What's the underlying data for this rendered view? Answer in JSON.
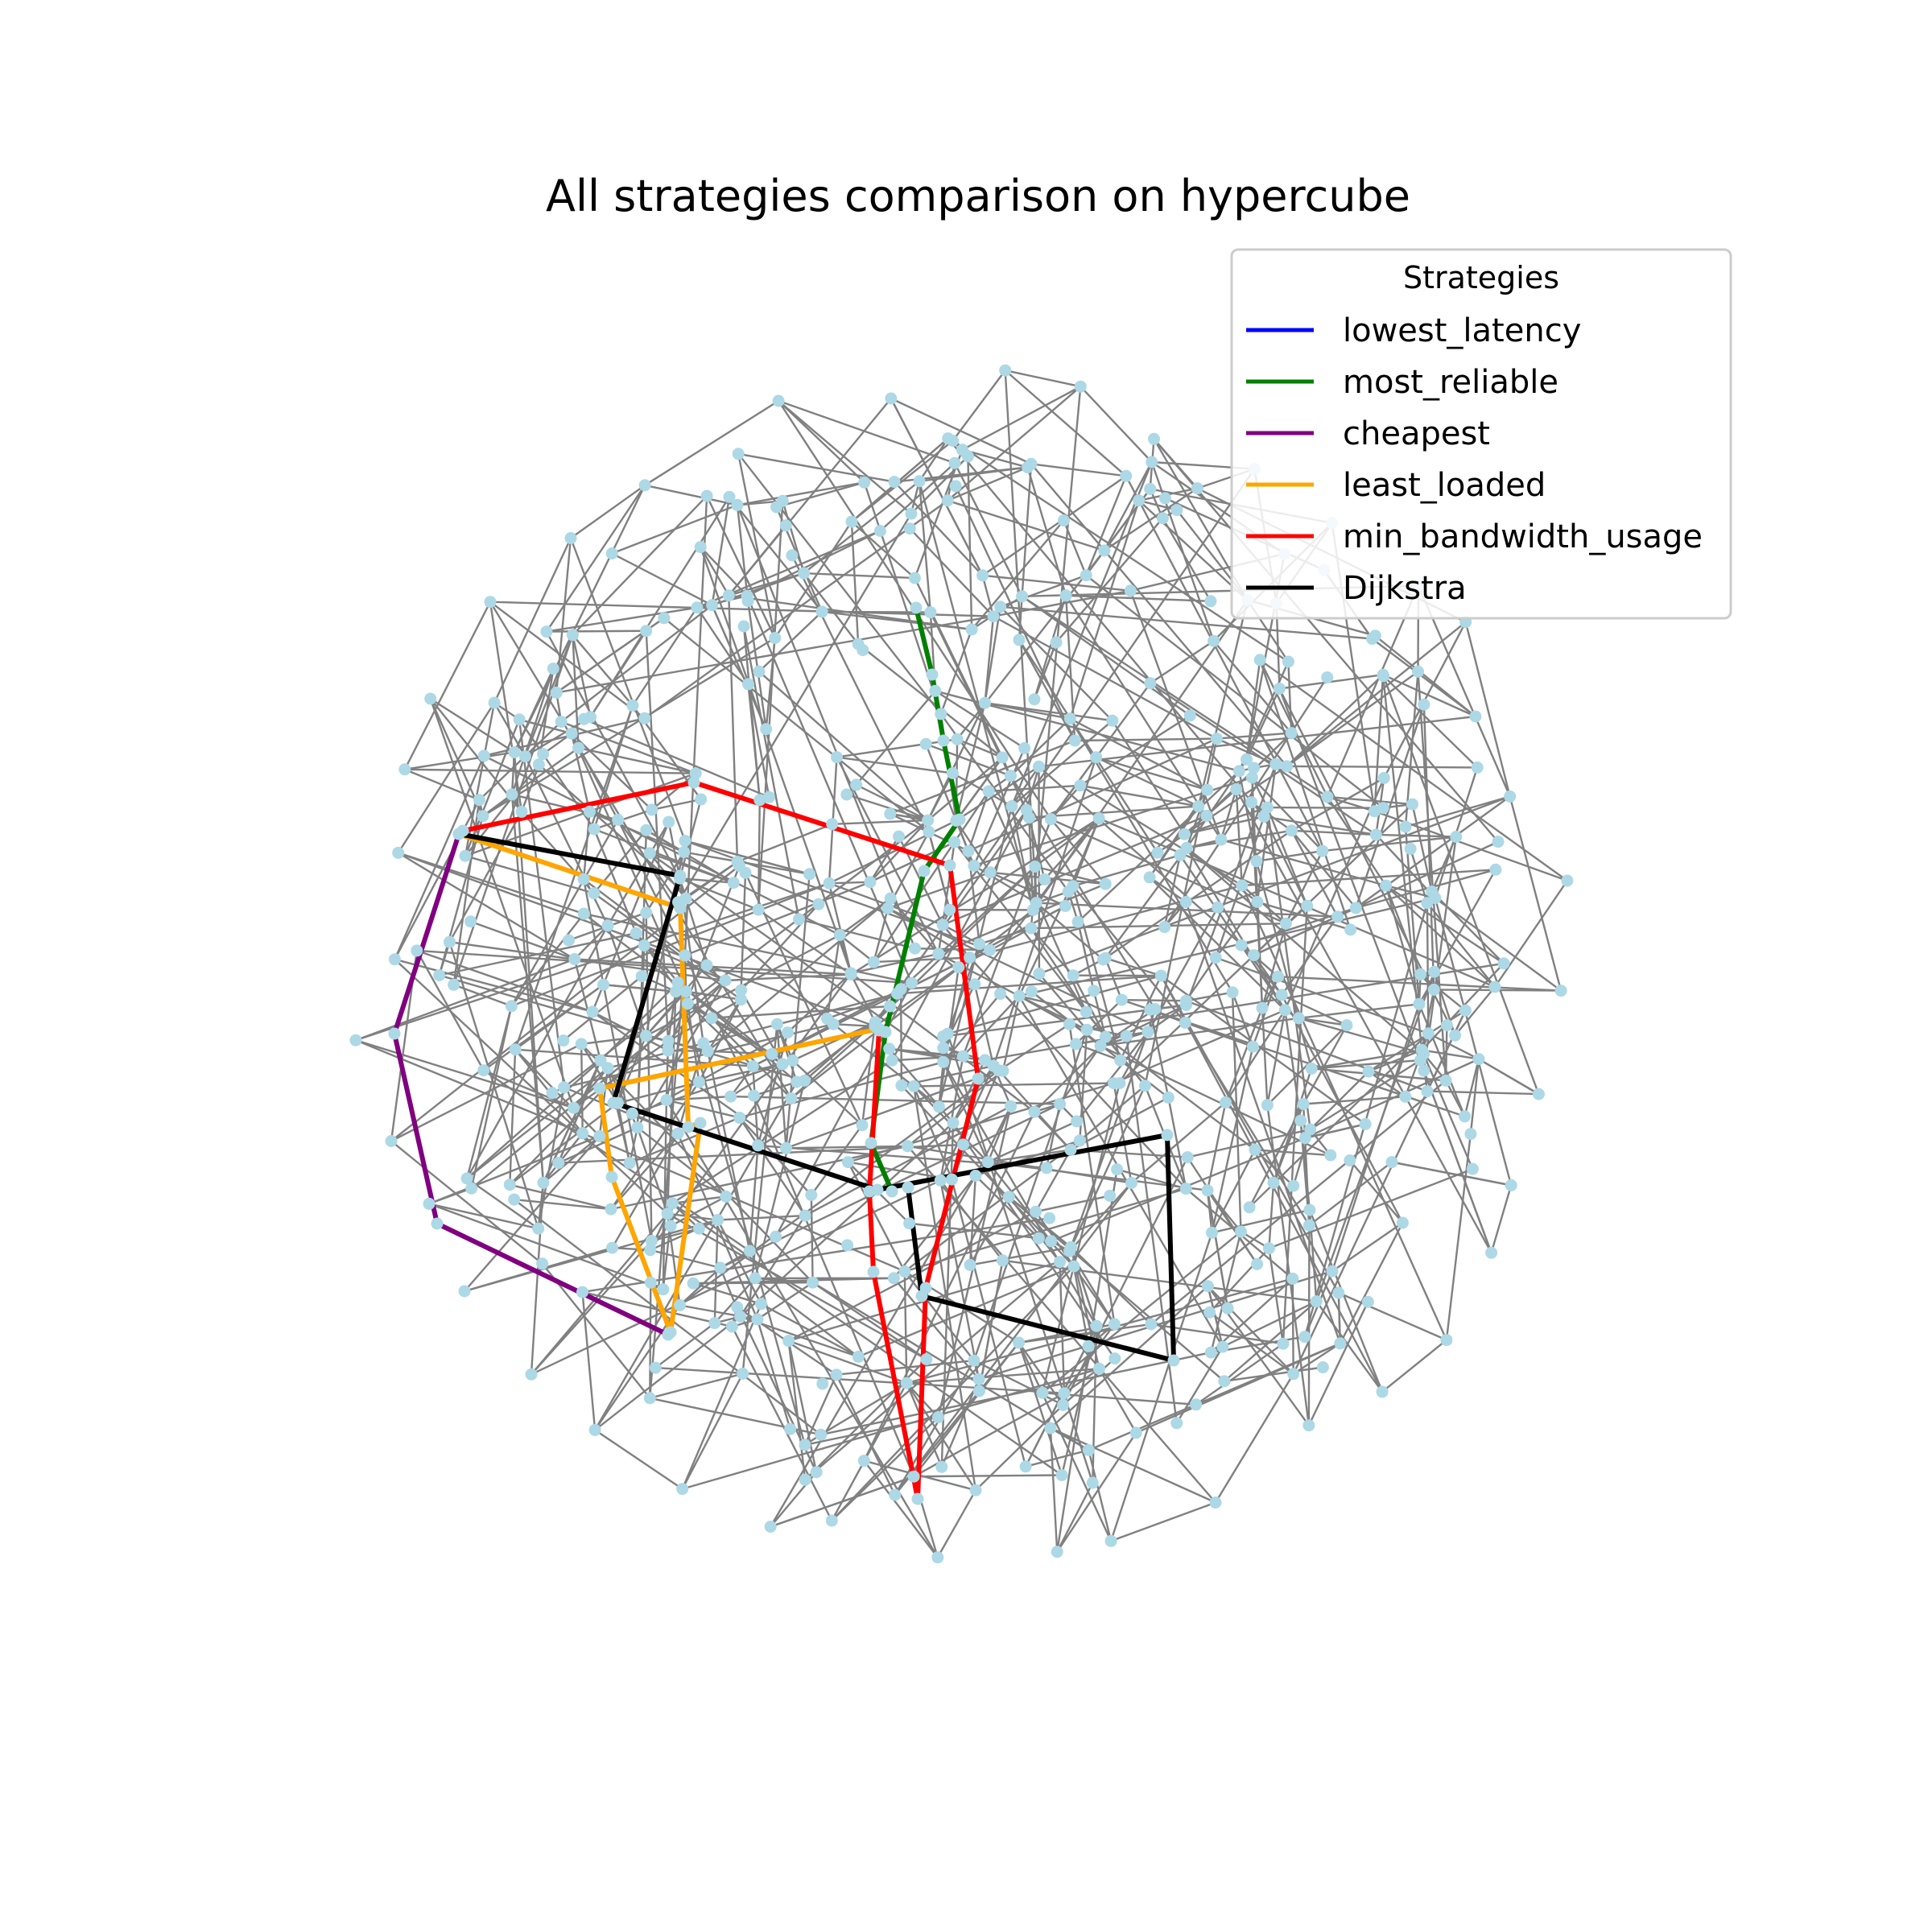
{
  "figure": {
    "title": "All strategies comparison on hypercube"
  },
  "legend": {
    "title": "Strategies",
    "entries": [
      {
        "label": "lowest_latency",
        "color": "#0000ff"
      },
      {
        "label": "most_reliable",
        "color": "#008000"
      },
      {
        "label": "cheapest",
        "color": "#800080"
      },
      {
        "label": "least_loaded",
        "color": "#ffa500"
      },
      {
        "label": "min_bandwidth_usage",
        "color": "#ff0000"
      },
      {
        "label": "Dijkstra",
        "color": "#000000"
      }
    ]
  },
  "colors": {
    "edge": "#808080",
    "node": "#add8e6",
    "background": "#ffffff"
  }
}
